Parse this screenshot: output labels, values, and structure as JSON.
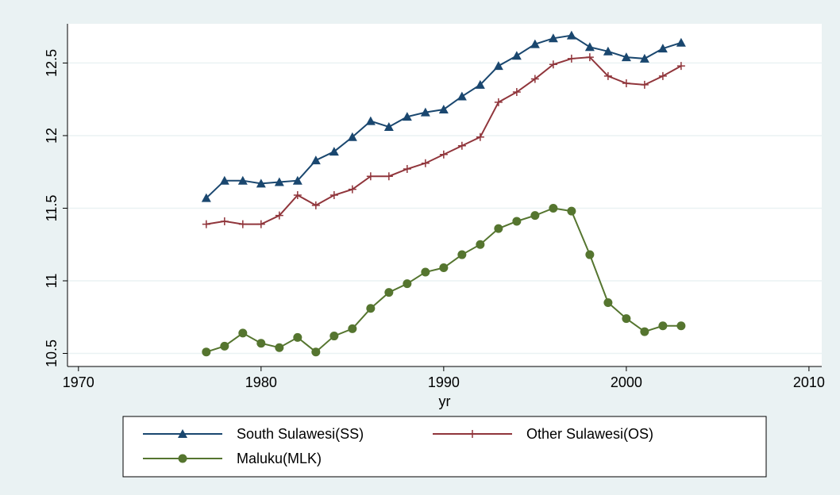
{
  "chart_data": {
    "type": "line",
    "x": [
      1977,
      1978,
      1979,
      1980,
      1981,
      1982,
      1983,
      1984,
      1985,
      1986,
      1987,
      1988,
      1989,
      1990,
      1991,
      1992,
      1993,
      1994,
      1995,
      1996,
      1997,
      1998,
      1999,
      2000,
      2001,
      2002,
      2003
    ],
    "series": [
      {
        "name": "South Sulawesi(SS)",
        "color": "#1a476f",
        "marker": "triangle",
        "values": [
          11.57,
          11.69,
          11.69,
          11.67,
          11.68,
          11.69,
          11.83,
          11.89,
          11.99,
          12.1,
          12.06,
          12.13,
          12.16,
          12.18,
          12.27,
          12.35,
          12.48,
          12.55,
          12.63,
          12.67,
          12.69,
          12.61,
          12.58,
          12.54,
          12.53,
          12.6,
          12.64
        ]
      },
      {
        "name": "Other Sulawesi(OS)",
        "color": "#90353b",
        "marker": "plus",
        "values": [
          11.39,
          11.41,
          11.39,
          11.39,
          11.45,
          11.59,
          11.52,
          11.59,
          11.63,
          11.72,
          11.72,
          11.77,
          11.81,
          11.87,
          11.93,
          11.99,
          12.23,
          12.3,
          12.39,
          12.49,
          12.53,
          12.54,
          12.41,
          12.36,
          12.35,
          12.41,
          12.48
        ]
      },
      {
        "name": "Maluku(MLK)",
        "color": "#55752f",
        "marker": "circle",
        "values": [
          10.51,
          10.55,
          10.64,
          10.57,
          10.54,
          10.61,
          10.51,
          10.62,
          10.67,
          10.81,
          10.92,
          10.98,
          11.06,
          11.09,
          11.18,
          11.25,
          11.36,
          11.41,
          11.45,
          11.5,
          11.48,
          11.18,
          10.85,
          10.74,
          10.65,
          10.69,
          10.69
        ]
      }
    ],
    "xlabel": "yr",
    "xlim": [
      1969.4,
      2010.7
    ],
    "xticks": [
      1970,
      1980,
      1990,
      2000,
      2010
    ],
    "ylim": [
      10.41,
      12.77
    ],
    "yticks": [
      10.5,
      11,
      11.5,
      12,
      12.5
    ],
    "grid": true
  }
}
